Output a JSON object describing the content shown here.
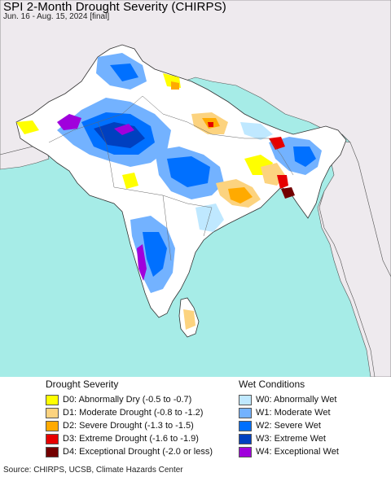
{
  "header": {
    "title": "SPI 2-Month Drought Severity (CHIRPS)",
    "subtitle": "Jun. 16 - Aug. 15, 2024 [final]"
  },
  "map": {
    "region": "South Asia",
    "colors": {
      "ocean": "#a6ece7",
      "outside_land": "#eeeaee",
      "neutral_land": "#ffffff",
      "borders": "#333333"
    }
  },
  "legend": {
    "drought": {
      "heading": "Drought Severity",
      "items": [
        {
          "label": "D0: Abnormally Dry (-0.5 to -0.7)",
          "color": "#ffff00"
        },
        {
          "label": "D1: Moderate Drought (-0.8 to -1.2)",
          "color": "#fcd37f"
        },
        {
          "label": "D2: Severe Drought (-1.3 to -1.5)",
          "color": "#ffaa00"
        },
        {
          "label": "D3: Extreme Drought (-1.6 to -1.9)",
          "color": "#e60000"
        },
        {
          "label": "D4: Exceptional Drought (-2.0 or less)",
          "color": "#730000"
        }
      ]
    },
    "wet": {
      "heading": "Wet Conditions",
      "items": [
        {
          "label": "W0: Abnormally Wet",
          "color": "#bfe8ff"
        },
        {
          "label": "W1: Moderate Wet",
          "color": "#73b2ff"
        },
        {
          "label": "W2: Severe Wet",
          "color": "#0070ff"
        },
        {
          "label": "W3: Extreme Wet",
          "color": "#0040c0"
        },
        {
          "label": "W4: Exceptional Wet",
          "color": "#a000dc"
        }
      ]
    }
  },
  "footer": {
    "source": "Source: CHIRPS, UCSB, Climate Hazards Center"
  }
}
